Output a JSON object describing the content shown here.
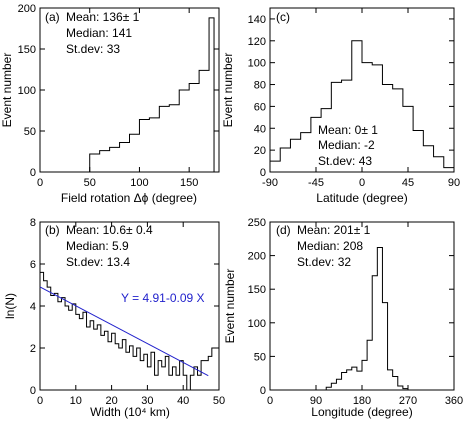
{
  "chart_data": [
    {
      "type": "bar",
      "style": "step-histogram",
      "panel": "(a)",
      "stats": [
        "Mean: 136± 1",
        "Median: 141",
        "St.dev:  33"
      ],
      "xlabel": "Field rotation Δϕ (degree)",
      "ylabel": "Event number",
      "xlim": [
        0,
        180
      ],
      "ylim": [
        0,
        200
      ],
      "xticks": [
        0,
        50,
        100,
        150
      ],
      "yticks": [
        0,
        50,
        100,
        150,
        200
      ],
      "bin_edges": [
        50,
        60,
        70,
        80,
        90,
        100,
        110,
        120,
        130,
        140,
        150,
        160,
        170,
        175
      ],
      "values": [
        22,
        26,
        30,
        36,
        46,
        64,
        66,
        80,
        82,
        100,
        108,
        124,
        188
      ]
    },
    {
      "type": "bar",
      "style": "step-histogram",
      "panel": "(c)",
      "stats": [
        "Mean:  0± 1",
        "Median: -2",
        "St.dev: 43"
      ],
      "xlabel": "Latitude (degree)",
      "ylabel": "Event number",
      "xlim": [
        -90,
        90
      ],
      "ylim": [
        0,
        150
      ],
      "xticks": [
        -90,
        -45,
        0,
        45,
        90
      ],
      "yticks": [
        0,
        20,
        40,
        60,
        80,
        100,
        120,
        140
      ],
      "bin_edges": [
        -90,
        -80,
        -70,
        -60,
        -50,
        -40,
        -30,
        -20,
        -10,
        0,
        10,
        20,
        30,
        40,
        50,
        60,
        70,
        80,
        90
      ],
      "values": [
        10,
        22,
        30,
        36,
        50,
        58,
        82,
        84,
        120,
        100,
        98,
        80,
        76,
        60,
        38,
        24,
        14,
        4
      ]
    },
    {
      "type": "line",
      "style": "step-with-fit",
      "panel": "(b)",
      "stats": [
        "Mean: 10.6± 0.4",
        "Median:  5.9",
        "St.dev: 13.4"
      ],
      "fit_label": "Y = 4.91-0.09 X",
      "fit": {
        "intercept": 4.91,
        "slope": -0.09,
        "x_range": [
          0,
          47
        ]
      },
      "fit_color": "#2222cc",
      "xlabel": "Width (10⁴ km)",
      "ylabel": "ln(N)",
      "xlim": [
        0,
        50
      ],
      "ylim": [
        0,
        8
      ],
      "xticks": [
        0,
        10,
        20,
        30,
        40,
        50
      ],
      "yticks": [
        0,
        2,
        4,
        6,
        8
      ],
      "bin_edges": [
        0,
        1,
        2,
        3,
        4,
        5,
        6,
        7,
        8,
        9,
        10,
        11,
        12,
        13,
        14,
        15,
        16,
        17,
        18,
        19,
        20,
        21,
        22,
        23,
        24,
        25,
        26,
        27,
        28,
        29,
        30,
        31,
        32,
        33,
        34,
        35,
        36,
        37,
        38,
        39,
        40,
        41,
        42,
        43,
        44,
        45,
        46,
        47,
        48,
        49
      ],
      "values": [
        5.6,
        5.2,
        4.9,
        4.5,
        4.6,
        4.2,
        4.4,
        4.0,
        3.8,
        4.1,
        3.6,
        3.4,
        3.7,
        3.0,
        3.3,
        2.9,
        3.1,
        2.6,
        2.8,
        2.3,
        2.7,
        2.2,
        2.0,
        2.4,
        1.8,
        2.1,
        1.6,
        2.0,
        1.4,
        1.7,
        1.1,
        1.8,
        0.7,
        1.4,
        1.1,
        1.6,
        0.7,
        1.1,
        0.7,
        1.4,
        0.7,
        0.0,
        0.7,
        1.1,
        0.7,
        1.4,
        1.4,
        1.6,
        2.0
      ]
    },
    {
      "type": "bar",
      "style": "step-histogram",
      "panel": "(d)",
      "stats": [
        "Mean: 201± 1",
        "Median: 208",
        "St.dev:  32"
      ],
      "xlabel": "Longitude (degree)",
      "ylabel": "Event number",
      "xlim": [
        0,
        360
      ],
      "ylim": [
        0,
        250
      ],
      "xticks": [
        0,
        90,
        180,
        270,
        360
      ],
      "yticks": [
        0,
        50,
        100,
        150,
        200,
        250
      ],
      "bin_edges": [
        110,
        120,
        130,
        140,
        150,
        160,
        170,
        180,
        190,
        200,
        210,
        220,
        230,
        240,
        250,
        260,
        270
      ],
      "values": [
        4,
        10,
        16,
        26,
        30,
        34,
        28,
        44,
        74,
        170,
        212,
        130,
        30,
        20,
        6,
        2
      ]
    }
  ]
}
